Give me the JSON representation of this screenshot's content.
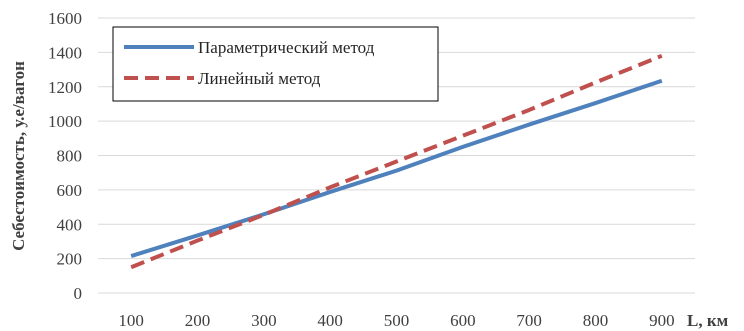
{
  "chart_data": {
    "type": "line",
    "x": [
      100,
      200,
      300,
      400,
      500,
      600,
      700,
      800,
      900
    ],
    "series": [
      {
        "name": "Параметрический метод",
        "values": [
          215,
          335,
          458,
          588,
          712,
          850,
          980,
          1105,
          1235
        ],
        "color": "#4f81bd",
        "dash": "solid"
      },
      {
        "name": "Линейный метод",
        "values": [
          150,
          305,
          455,
          615,
          765,
          915,
          1065,
          1225,
          1380
        ],
        "color": "#c0504d",
        "dash": "dashed"
      }
    ],
    "xticks": [
      "100",
      "200",
      "300",
      "400",
      "500",
      "600",
      "700",
      "800",
      "900"
    ],
    "yticks": [
      "0",
      "200",
      "400",
      "600",
      "800",
      "1000",
      "1200",
      "1400",
      "1600"
    ],
    "xlabel": "L, км",
    "ylabel": "Себестоимость, у.е/вагон",
    "ylim": [
      0,
      1600
    ],
    "xlim": [
      50,
      950
    ],
    "grid": "horizontal",
    "legend_position": "top-left"
  }
}
